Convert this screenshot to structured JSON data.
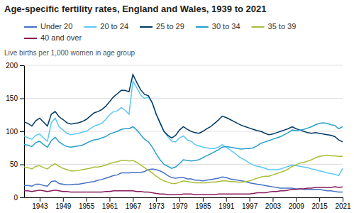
{
  "chart_data": {
    "type": "line",
    "title": "Age-specific fertility rates, England and Wales, 1939 to 2021",
    "ylabel": "Live births per 1,000 women in age group",
    "x": [
      1939,
      1940,
      1941,
      1942,
      1943,
      1944,
      1945,
      1946,
      1947,
      1948,
      1949,
      1950,
      1951,
      1952,
      1953,
      1954,
      1955,
      1956,
      1957,
      1958,
      1959,
      1960,
      1961,
      1962,
      1963,
      1964,
      1965,
      1966,
      1967,
      1968,
      1969,
      1970,
      1971,
      1972,
      1973,
      1974,
      1975,
      1976,
      1977,
      1978,
      1979,
      1980,
      1981,
      1982,
      1983,
      1984,
      1985,
      1986,
      1987,
      1988,
      1989,
      1990,
      1991,
      1992,
      1993,
      1994,
      1995,
      1996,
      1997,
      1998,
      1999,
      2000,
      2001,
      2002,
      2003,
      2004,
      2005,
      2006,
      2007,
      2008,
      2009,
      2010,
      2011,
      2012,
      2013,
      2014,
      2015,
      2016,
      2017,
      2018,
      2019,
      2020,
      2021
    ],
    "xlim": [
      1939,
      2021
    ],
    "xticks": [
      1943,
      1949,
      1955,
      1961,
      1967,
      1973,
      1979,
      1985,
      1991,
      1997,
      2003,
      2009,
      2015,
      2021
    ],
    "ylim": [
      0,
      200
    ],
    "yticks": [
      0,
      50,
      100,
      150,
      200
    ],
    "grid": true,
    "legend": "top",
    "series": [
      {
        "name": "Under 20",
        "color": "#4472c4",
        "values": [
          18,
          18,
          17,
          20,
          20,
          18,
          17,
          24,
          25,
          21,
          20,
          19,
          19,
          20,
          20,
          21,
          22,
          23,
          24,
          26,
          27,
          29,
          31,
          33,
          34,
          37,
          37,
          37,
          38,
          38,
          38,
          39,
          42,
          43,
          42,
          40,
          37,
          33,
          30,
          29,
          30,
          30,
          28,
          28,
          26,
          26,
          25,
          26,
          27,
          28,
          29,
          31,
          30,
          28,
          27,
          26,
          25,
          24,
          22,
          21,
          20,
          19,
          18,
          17,
          16,
          15,
          14,
          14,
          14,
          14,
          13,
          13,
          12,
          12,
          12,
          12,
          12,
          11,
          10,
          10,
          9,
          8,
          8
        ]
      },
      {
        "name": "20 to 24",
        "color": "#5bc8f5",
        "values": [
          93,
          90,
          88,
          94,
          96,
          90,
          85,
          113,
          120,
          107,
          102,
          97,
          95,
          96,
          97,
          99,
          100,
          104,
          108,
          110,
          112,
          118,
          125,
          130,
          131,
          136,
          132,
          126,
          176,
          166,
          155,
          150,
          152,
          143,
          126,
          112,
          100,
          92,
          85,
          84,
          90,
          93,
          87,
          85,
          80,
          78,
          76,
          75,
          74,
          74,
          76,
          80,
          76,
          72,
          68,
          63,
          59,
          56,
          52,
          49,
          47,
          46,
          44,
          42,
          42,
          42,
          43,
          45,
          47,
          49,
          48,
          47,
          46,
          45,
          43,
          42,
          40,
          39,
          37,
          36,
          35,
          33,
          44
        ]
      },
      {
        "name": "25 to 29",
        "color": "#003865",
        "values": [
          114,
          112,
          108,
          116,
          120,
          114,
          108,
          126,
          130,
          122,
          118,
          113,
          111,
          112,
          113,
          115,
          118,
          123,
          128,
          130,
          133,
          138,
          145,
          152,
          157,
          162,
          162,
          160,
          186,
          174,
          163,
          156,
          154,
          143,
          126,
          113,
          100,
          94,
          90,
          94,
          102,
          107,
          103,
          100,
          98,
          97,
          100,
          104,
          107,
          112,
          117,
          123,
          121,
          118,
          115,
          112,
          109,
          107,
          105,
          103,
          101,
          100,
          97,
          95,
          96,
          98,
          100,
          102,
          104,
          107,
          104,
          102,
          100,
          98,
          97,
          98,
          97,
          96,
          95,
          94,
          92,
          87,
          84
        ]
      },
      {
        "name": "30 to 34",
        "color": "#27a0cc",
        "values": [
          80,
          79,
          77,
          83,
          85,
          80,
          76,
          86,
          91,
          84,
          80,
          77,
          76,
          77,
          78,
          79,
          82,
          85,
          87,
          88,
          90,
          92,
          96,
          98,
          100,
          103,
          104,
          104,
          107,
          102,
          95,
          88,
          84,
          76,
          66,
          57,
          50,
          47,
          44,
          46,
          51,
          57,
          56,
          55,
          56,
          57,
          60,
          63,
          66,
          69,
          72,
          76,
          77,
          76,
          75,
          74,
          73,
          74,
          74,
          75,
          78,
          82,
          84,
          86,
          88,
          90,
          92,
          95,
          98,
          102,
          101,
          102,
          103,
          105,
          107,
          110,
          112,
          113,
          112,
          110,
          109,
          104,
          107
        ]
      },
      {
        "name": "35 to 39",
        "color": "#a8bd3a",
        "values": [
          46,
          45,
          43,
          47,
          48,
          45,
          43,
          48,
          51,
          47,
          44,
          42,
          40,
          40,
          41,
          42,
          43,
          44,
          46,
          46,
          47,
          49,
          51,
          53,
          54,
          56,
          56,
          55,
          56,
          53,
          49,
          45,
          41,
          37,
          32,
          28,
          25,
          23,
          21,
          21,
          23,
          25,
          24,
          23,
          22,
          22,
          22,
          22,
          23,
          23,
          24,
          25,
          25,
          24,
          24,
          23,
          23,
          24,
          25,
          27,
          29,
          31,
          32,
          32,
          34,
          36,
          38,
          40,
          43,
          47,
          49,
          52,
          53,
          55,
          57,
          60,
          62,
          63,
          64,
          63,
          63,
          62,
          62
        ]
      },
      {
        "name": "40 and over",
        "color": "#871a5b",
        "values": [
          10,
          10,
          9,
          10,
          11,
          10,
          9,
          10,
          11,
          10,
          9,
          9,
          8,
          8,
          8,
          8,
          8,
          8,
          8,
          8,
          8,
          9,
          9,
          10,
          10,
          10,
          10,
          10,
          10,
          9,
          9,
          8,
          8,
          7,
          6,
          5,
          5,
          4,
          4,
          4,
          4,
          5,
          5,
          5,
          4,
          4,
          4,
          4,
          4,
          4,
          5,
          5,
          5,
          5,
          5,
          5,
          5,
          5,
          5,
          6,
          7,
          7,
          7,
          8,
          9,
          9,
          10,
          10,
          11,
          12,
          12,
          13,
          13,
          14,
          14,
          15,
          15,
          15,
          15,
          15,
          16,
          15,
          16
        ]
      }
    ]
  }
}
